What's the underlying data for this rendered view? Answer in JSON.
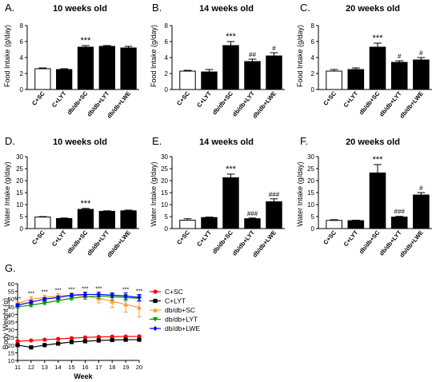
{
  "figure": {
    "panels": [
      {
        "letter": "A.",
        "title": "10 weeks old",
        "ylabel": "Food Intake (g/day)"
      },
      {
        "letter": "B.",
        "title": "14 weeks old",
        "ylabel": "Food Intake (g/day)"
      },
      {
        "letter": "C.",
        "title": "20 weeks old",
        "ylabel": "Food Intake (g/day)"
      },
      {
        "letter": "D.",
        "title": "10 weeks old",
        "ylabel": "Water Intake (g/day)"
      },
      {
        "letter": "E.",
        "title": "14 weeks old",
        "ylabel": "Water Intake (g/day)"
      },
      {
        "letter": "F.",
        "title": "20 weeks old",
        "ylabel": "Water Intake (g/day)"
      }
    ],
    "line_panel": {
      "letter": "G.",
      "xlabel": "Week",
      "ylabel": "Body Weight (g)"
    }
  },
  "colors": {
    "bar_fill": "#000000",
    "control_fill": "#ffffff",
    "c_sc": "#ff0000",
    "c_lyt": "#000000",
    "db_sc": "#ff9933",
    "db_lyt": "#009900",
    "db_lwe": "#0000ff"
  },
  "chart_data": [
    {
      "type": "bar",
      "title": "10 weeks old",
      "ylabel": "Food Intake (g/day)",
      "ylim": [
        0,
        8
      ],
      "yticks": [
        0,
        2,
        4,
        6,
        8
      ],
      "categories": [
        "C+SC",
        "C+LYT",
        "db/db+SC",
        "db/db+LYT",
        "db/db+LWE"
      ],
      "values": [
        2.6,
        2.5,
        5.3,
        5.4,
        5.2
      ],
      "errors": [
        0.1,
        0.1,
        0.2,
        0.1,
        0.2
      ],
      "annotations": [
        "",
        "",
        "***",
        "",
        ""
      ]
    },
    {
      "type": "bar",
      "title": "14 weeks old",
      "ylabel": "Food Intake (g/day)",
      "ylim": [
        0,
        8
      ],
      "yticks": [
        0,
        2,
        4,
        6,
        8
      ],
      "categories": [
        "C+SC",
        "C+LYT",
        "db/db+SC",
        "db/db+LYT",
        "db/db+LWE"
      ],
      "values": [
        2.3,
        2.2,
        5.5,
        3.5,
        4.2
      ],
      "errors": [
        0.1,
        0.3,
        0.5,
        0.3,
        0.4
      ],
      "annotations": [
        "",
        "",
        "***",
        "##",
        "#"
      ]
    },
    {
      "type": "bar",
      "title": "20 weeks old",
      "ylabel": "Food Intake (g/day)",
      "ylim": [
        0,
        8
      ],
      "yticks": [
        0,
        2,
        4,
        6,
        8
      ],
      "categories": [
        "C+SC",
        "C+LYT",
        "db/db+SC",
        "db/db+LYT",
        "db/db+LWE"
      ],
      "values": [
        2.3,
        2.5,
        5.3,
        3.4,
        3.7
      ],
      "errors": [
        0.2,
        0.2,
        0.5,
        0.2,
        0.3
      ],
      "annotations": [
        "",
        "",
        "***",
        "#",
        "#"
      ]
    },
    {
      "type": "bar",
      "title": "10 weeks old",
      "ylabel": "Water Intake (g/day)",
      "ylim": [
        0,
        30
      ],
      "yticks": [
        0,
        5,
        10,
        15,
        20,
        25,
        30
      ],
      "categories": [
        "C+SC",
        "C+LYT",
        "db/db+SC",
        "db/db+LYT",
        "db/db+LWE"
      ],
      "values": [
        4.8,
        4.2,
        8.0,
        7.2,
        7.4
      ],
      "errors": [
        0.2,
        0.2,
        0.4,
        0.2,
        0.3
      ],
      "annotations": [
        "",
        "",
        "***",
        "",
        ""
      ]
    },
    {
      "type": "bar",
      "title": "14 weeks old",
      "ylabel": "Water Intake (g/day)",
      "ylim": [
        0,
        30
      ],
      "yticks": [
        0,
        5,
        10,
        15,
        20,
        25,
        30
      ],
      "categories": [
        "C+SC",
        "C+LYT",
        "db/db+SC",
        "db/db+LYT",
        "db/db+LWE"
      ],
      "values": [
        3.5,
        4.6,
        21.2,
        4.1,
        11.2
      ],
      "errors": [
        0.6,
        0.2,
        1.5,
        0.3,
        1.2
      ],
      "annotations": [
        "",
        "",
        "***",
        "###",
        "###"
      ]
    },
    {
      "type": "bar",
      "title": "20 weeks old",
      "ylabel": "Water Intake (g/day)",
      "ylim": [
        0,
        30
      ],
      "yticks": [
        0,
        5,
        10,
        15,
        20,
        25,
        30
      ],
      "categories": [
        "C+SC",
        "C+LYT",
        "db/db+SC",
        "db/db+LYT",
        "db/db+LWE"
      ],
      "values": [
        3.4,
        3.3,
        23.2,
        4.8,
        14.0
      ],
      "errors": [
        0.3,
        0.2,
        3.5,
        0.3,
        1.0
      ],
      "annotations": [
        "",
        "",
        "***",
        "###",
        "#"
      ]
    },
    {
      "type": "line",
      "xlabel": "Week",
      "ylabel": "Body Weight (g)",
      "x": [
        11,
        12,
        13,
        14,
        15,
        16,
        17,
        18,
        19,
        20
      ],
      "xlim": [
        11,
        20
      ],
      "ylim": [
        10,
        60
      ],
      "yticks": [
        10,
        15,
        20,
        25,
        30,
        35,
        40,
        45,
        50,
        55,
        60
      ],
      "legend_position": "right",
      "annotations": [
        "***",
        "***",
        "***",
        "***",
        "***",
        "***",
        "***",
        "",
        "***",
        "***"
      ],
      "series": [
        {
          "name": "C+SC",
          "marker": "circle",
          "values": [
            22.5,
            23.0,
            23.5,
            24.0,
            24.5,
            25.0,
            25.3,
            25.5,
            25.6,
            25.7
          ]
        },
        {
          "name": "C+LYT",
          "marker": "square",
          "values": [
            20.0,
            18.5,
            20.0,
            21.0,
            22.0,
            22.5,
            23.0,
            23.3,
            23.5,
            23.5
          ]
        },
        {
          "name": "db/db+SC",
          "marker": "triangle-up",
          "values": [
            47,
            50,
            51,
            52,
            52.5,
            52,
            50.5,
            48.5,
            46.5,
            44.5
          ],
          "errors": [
            1,
            1.5,
            1.5,
            1.5,
            1.5,
            2,
            3,
            4,
            5,
            6
          ]
        },
        {
          "name": "db/db+LYT",
          "marker": "triangle-down",
          "values": [
            45,
            46,
            47.5,
            49,
            50.5,
            51.5,
            52,
            51.5,
            51,
            50.5
          ],
          "errors": [
            1,
            1,
            1,
            1,
            1,
            1.5,
            1.5,
            2,
            2,
            2
          ]
        },
        {
          "name": "db/db+LWE",
          "marker": "diamond",
          "values": [
            46,
            48,
            50,
            51,
            52.5,
            53,
            53,
            52.5,
            52,
            51
          ],
          "errors": [
            1,
            1,
            1,
            1,
            1,
            1.5,
            1.5,
            1.5,
            2,
            2
          ]
        }
      ]
    }
  ]
}
